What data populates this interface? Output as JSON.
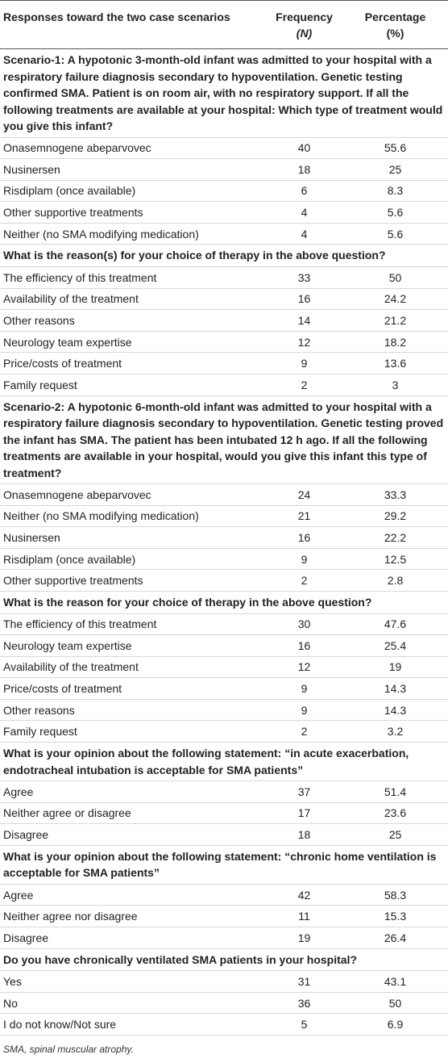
{
  "table": {
    "header": [
      "Responses toward the two case scenarios",
      "Frequency",
      "(N)",
      "Percentage",
      "(%)"
    ],
    "sections": [
      {
        "title": "Scenario-1: A hypotonic 3-month-old infant was admitted to your hospital with a respiratory failure diagnosis secondary to hypoventilation. Genetic testing confirmed SMA. Patient is on room air, with no respiratory support. If all the following treatments are available at your hospital: Which type of treatment would you give this infant?",
        "rows": [
          [
            "Onasemnogene abeparvovec",
            40,
            55.6
          ],
          [
            "Nusinersen",
            18,
            25
          ],
          [
            "Risdiplam (once available)",
            6,
            8.3
          ],
          [
            "Other supportive treatments",
            4,
            5.6
          ],
          [
            "Neither (no SMA modifying medication)",
            4,
            5.6
          ]
        ]
      },
      {
        "title": "What is the reason(s) for your choice of therapy in the above question?",
        "rows": [
          [
            "The efficiency of this treatment",
            33,
            50
          ],
          [
            "Availability of the treatment",
            16,
            24.2
          ],
          [
            "Other reasons",
            14,
            21.2
          ],
          [
            "Neurology team expertise",
            12,
            18.2
          ],
          [
            "Price/costs of treatment",
            9,
            13.6
          ],
          [
            "Family request",
            2,
            3
          ]
        ]
      },
      {
        "title": "Scenario-2: A hypotonic 6-month-old infant was admitted to your hospital with a respiratory failure diagnosis secondary to hypoventilation. Genetic testing proved the infant has SMA. The patient has been intubated 12 h ago. If all the following treatments are available in your hospital, would you give this infant this type of treatment?",
        "rows": [
          [
            "Onasemnogene abeparvovec",
            24,
            33.3
          ],
          [
            "Neither (no SMA modifying medication)",
            21,
            29.2
          ],
          [
            "Nusinersen",
            16,
            22.2
          ],
          [
            "Risdiplam (once available)",
            9,
            12.5
          ],
          [
            "Other supportive treatments",
            2,
            2.8
          ]
        ]
      },
      {
        "title": "What is the reason for your choice of therapy in the above question?",
        "rows": [
          [
            "The efficiency of this treatment",
            30,
            47.6
          ],
          [
            "Neurology team expertise",
            16,
            25.4
          ],
          [
            "Availability of the treatment",
            12,
            19
          ],
          [
            "Price/costs of treatment",
            9,
            14.3
          ],
          [
            "Other reasons",
            9,
            14.3
          ],
          [
            "Family request",
            2,
            3.2
          ]
        ]
      },
      {
        "title": "What is your opinion about the following statement: “in acute exacerbation, endotracheal intubation is acceptable for SMA patients”",
        "rows": [
          [
            "Agree",
            37,
            51.4
          ],
          [
            "Neither agree or disagree",
            17,
            23.6
          ],
          [
            "Disagree",
            18,
            25
          ]
        ]
      },
      {
        "title": "What is your opinion about the following statement: “chronic home ventilation is acceptable for SMA patients”",
        "rows": [
          [
            "Agree",
            42,
            58.3
          ],
          [
            "Neither agree nor disagree",
            11,
            15.3
          ],
          [
            "Disagree",
            19,
            26.4
          ]
        ]
      },
      {
        "title": "Do you have chronically ventilated SMA patients in your hospital?",
        "rows": [
          [
            "Yes",
            31,
            43.1
          ],
          [
            "No",
            36,
            50
          ],
          [
            "I do not know/Not sure",
            5,
            6.9
          ]
        ]
      }
    ],
    "footnote": "SMA, spinal muscular atrophy."
  }
}
